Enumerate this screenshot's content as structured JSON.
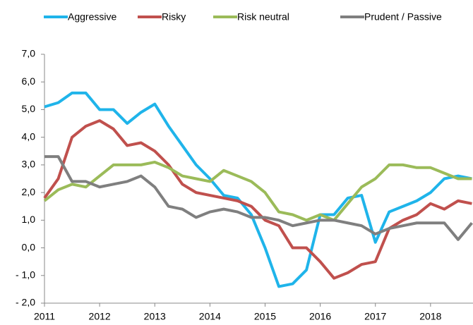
{
  "chart_data": {
    "type": "line",
    "x": [
      2011,
      2011.25,
      2011.5,
      2011.75,
      2012,
      2012.25,
      2012.5,
      2012.75,
      2013,
      2013.25,
      2013.5,
      2013.75,
      2014,
      2014.25,
      2014.5,
      2014.75,
      2015,
      2015.25,
      2015.5,
      2015.75,
      2016,
      2016.25,
      2016.5,
      2016.75,
      2017,
      2017.25,
      2017.5,
      2017.75,
      2018,
      2018.25,
      2018.5,
      2018.75
    ],
    "series": [
      {
        "name": "Aggressive",
        "color": "#1fb4ea",
        "values": [
          5.1,
          5.25,
          5.6,
          5.6,
          5.0,
          5.0,
          4.5,
          4.9,
          5.2,
          4.4,
          3.7,
          3.0,
          2.5,
          1.9,
          1.8,
          1.2,
          0.0,
          -1.4,
          -1.3,
          -0.8,
          1.2,
          1.2,
          1.8,
          1.9,
          0.2,
          1.3,
          1.5,
          1.7,
          2.0,
          2.5,
          2.6,
          2.5
        ]
      },
      {
        "name": "Risky",
        "color": "#c0504d",
        "values": [
          1.8,
          2.5,
          4.0,
          4.4,
          4.6,
          4.3,
          3.7,
          3.8,
          3.5,
          3.0,
          2.3,
          2.0,
          1.9,
          1.8,
          1.7,
          1.5,
          1.0,
          0.8,
          0.0,
          0.0,
          -0.5,
          -1.1,
          -0.9,
          -0.6,
          -0.5,
          0.7,
          1.0,
          1.2,
          1.6,
          1.4,
          1.7,
          1.6
        ]
      },
      {
        "name": "Risk neutral",
        "color": "#9bbb59",
        "values": [
          1.7,
          2.1,
          2.3,
          2.2,
          2.6,
          3.0,
          3.0,
          3.0,
          3.1,
          2.9,
          2.6,
          2.5,
          2.4,
          2.8,
          2.6,
          2.4,
          2.0,
          1.3,
          1.2,
          1.0,
          1.2,
          1.0,
          1.6,
          2.2,
          2.5,
          3.0,
          3.0,
          2.9,
          2.9,
          2.7,
          2.5,
          2.5
        ]
      },
      {
        "name": "Prudent / Passive",
        "color": "#7f7f7f",
        "values": [
          3.3,
          3.3,
          2.4,
          2.4,
          2.2,
          2.3,
          2.4,
          2.6,
          2.2,
          1.5,
          1.4,
          1.1,
          1.3,
          1.4,
          1.3,
          1.1,
          1.1,
          1.0,
          0.8,
          0.9,
          1.0,
          1.0,
          0.9,
          0.8,
          0.5,
          0.7,
          0.8,
          0.9,
          0.9,
          0.9,
          0.3,
          0.9
        ]
      }
    ],
    "xlim": [
      2011,
      2018.77
    ],
    "xticks": [
      2011,
      2012,
      2013,
      2014,
      2015,
      2016,
      2017,
      2018
    ],
    "ylim": [
      -2,
      7
    ],
    "yticks": [
      {
        "value": -2,
        "label": "- 2,0"
      },
      {
        "value": -1,
        "label": "- 1,0"
      },
      {
        "value": 0,
        "label": "0,0"
      },
      {
        "value": 1,
        "label": "1,0"
      },
      {
        "value": 2,
        "label": "2,0"
      },
      {
        "value": 3,
        "label": "3,0"
      },
      {
        "value": 4,
        "label": "4,0"
      },
      {
        "value": 5,
        "label": "5,0"
      },
      {
        "value": 6,
        "label": "6,0"
      },
      {
        "value": 7,
        "label": "7,0"
      }
    ],
    "grid": false
  }
}
